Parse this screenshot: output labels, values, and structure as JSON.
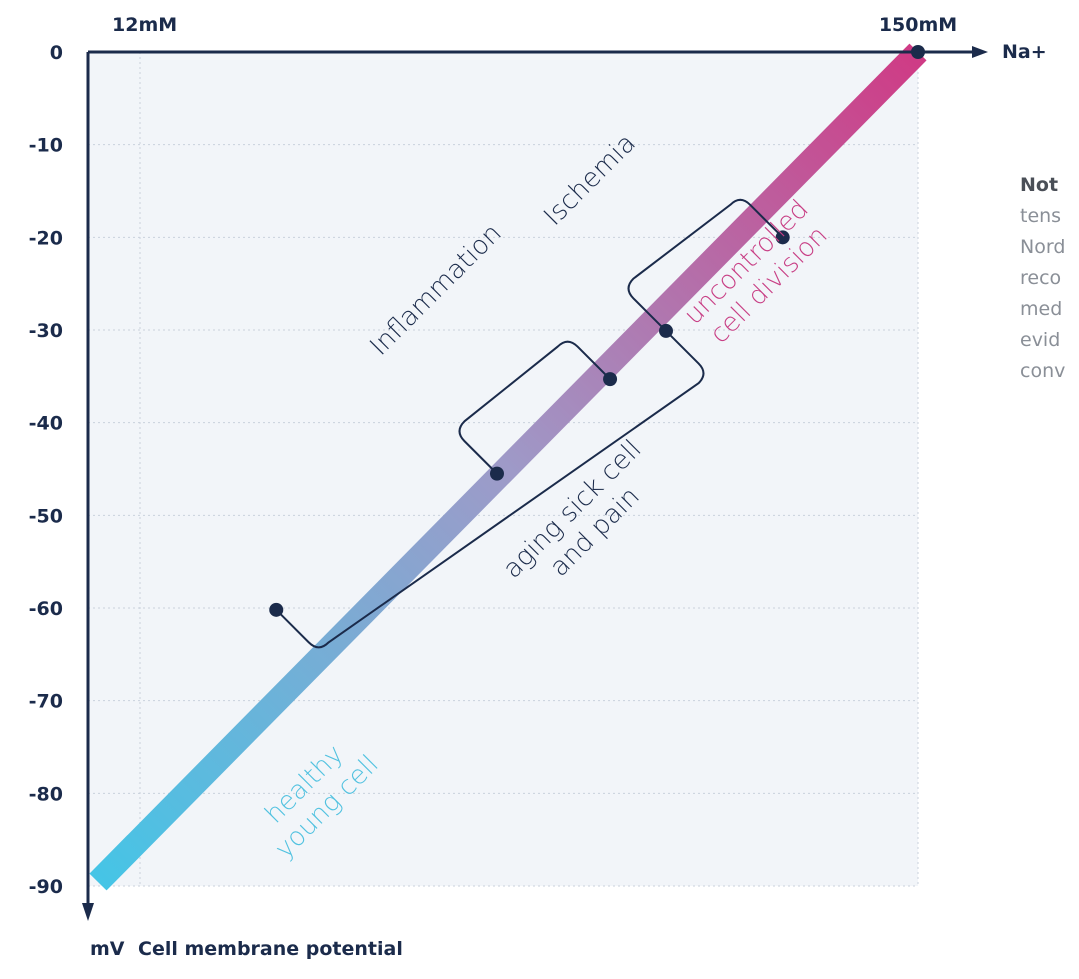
{
  "chart_data": {
    "type": "line",
    "y_axis": {
      "unit_label": "mV",
      "title": "Cell membrane potential",
      "ticks": [
        "0",
        "-10",
        "-20",
        "-30",
        "-40",
        "-50",
        "-60",
        "-70",
        "-80",
        "-90"
      ],
      "ylim": [
        -90,
        0
      ]
    },
    "x_axis": {
      "label": "Na+",
      "start_label": "12mM",
      "end_label": "150mM",
      "xlim": [
        12,
        150
      ]
    },
    "series": [
      {
        "x": [
          12,
          150
        ],
        "y": [
          -90,
          0
        ]
      }
    ],
    "points": [
      {
        "x": 43.3,
        "y": -60.2
      },
      {
        "x": 80.0,
        "y": -45.5
      },
      {
        "x": 98.8,
        "y": -35.3
      },
      {
        "x": 108.1,
        "y": -30.1
      },
      {
        "x": 127.5,
        "y": -20.0
      },
      {
        "x": 150,
        "y": 0
      }
    ],
    "stages": [
      {
        "label_lines": [
          "healthy",
          "young cell"
        ],
        "color": "#52c2e0"
      },
      {
        "label_lines": [
          "aging sick cell",
          "and pain"
        ],
        "color": "#1b2b4b"
      },
      {
        "label_lines": [
          "Inflammation"
        ],
        "color": "#1b2b4b"
      },
      {
        "label_lines": [
          "Ischemia"
        ],
        "color": "#1b2b4b"
      },
      {
        "label_lines": [
          "uncontrolled",
          "cell division"
        ],
        "color": "#c83f85"
      }
    ],
    "gradient_colors": [
      "#45c5e6",
      "#9e9ac8",
      "#cf3b85"
    ],
    "grid": true,
    "plot_background": "#f2f5f9",
    "axis_color": "#1b2b4b"
  },
  "note": {
    "head": "Not",
    "lines": [
      "tens",
      "Nord",
      "reco",
      "med",
      "evid",
      "conv"
    ]
  }
}
